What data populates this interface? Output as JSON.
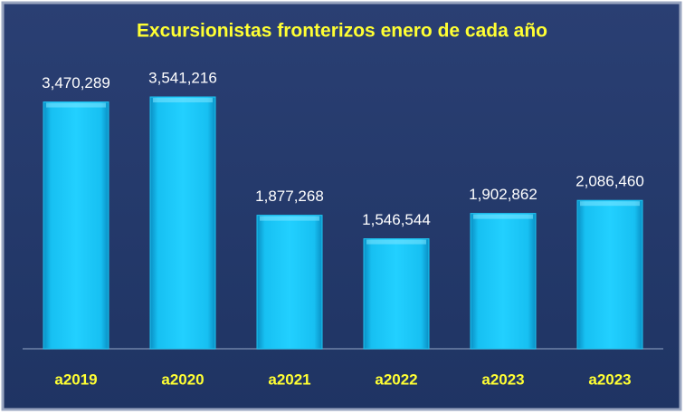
{
  "chart_data": {
    "type": "bar",
    "title": "Excursionistas fronterizos enero de cada año",
    "categories": [
      "a2019",
      "a2020",
      "a2021",
      "a2022",
      "a2023",
      "a2023"
    ],
    "values": [
      3470289,
      3541216,
      1877268,
      1546544,
      1902862,
      2086460
    ],
    "value_labels": [
      "3,470,289",
      "3,541,216",
      "1,877,268",
      "1,546,544",
      "1,902,862",
      "2,086,460"
    ],
    "color": "#1ec8f5",
    "ylim": [
      0,
      4000000
    ]
  }
}
